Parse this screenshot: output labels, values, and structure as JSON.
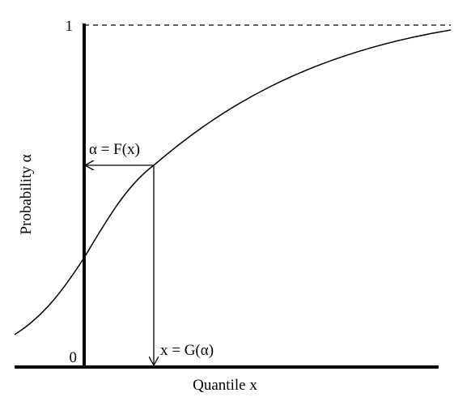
{
  "axes": {
    "y_label": "Probability α",
    "x_label": "Quantile x",
    "y_top": "1",
    "y_bottom": "0"
  },
  "annotations": {
    "forward": "α = F(x)",
    "inverse": "x = G(α)"
  }
}
